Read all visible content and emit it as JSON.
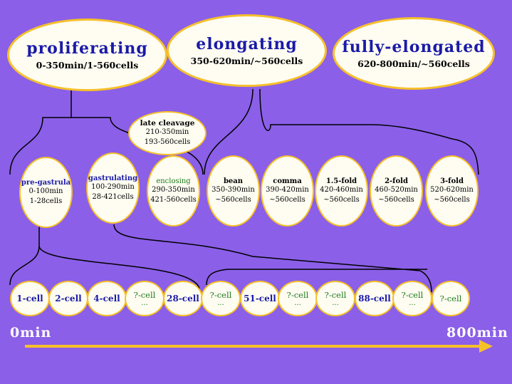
{
  "stages": [
    {
      "title": "proliferating",
      "sub": "0-350min/1-560cells"
    },
    {
      "title": "elongating",
      "sub": "350-620min/~560cells"
    },
    {
      "title": "fully-elongated",
      "sub": "620-800min/~560cells"
    }
  ],
  "late_cleavage": {
    "title": "late cleavage",
    "time": "210-350min",
    "cells": "193-560cells"
  },
  "phases": [
    {
      "title": "pre-gastrula",
      "time": "0-100min",
      "cells": "1-28cells",
      "color": "blue"
    },
    {
      "title": "gastrulating",
      "time": "100-290min",
      "cells": "28-421cells",
      "color": "blue"
    },
    {
      "title": "enclosing",
      "time": "290-350min",
      "cells": "421-560cells",
      "color": "green"
    },
    {
      "title": "bean",
      "time": "350-390min",
      "cells": "~560cells",
      "color": "black"
    },
    {
      "title": "comma",
      "time": "390-420min",
      "cells": "~560cells",
      "color": "black"
    },
    {
      "title": "1.5-fold",
      "time": "420-460min",
      "cells": "~560cells",
      "color": "black"
    },
    {
      "title": "2-fold",
      "time": "460-520min",
      "cells": "~560cells",
      "color": "black"
    },
    {
      "title": "3-fold",
      "time": "520-620min",
      "cells": "~560cells",
      "color": "black"
    }
  ],
  "cells": [
    {
      "label": "1-cell",
      "q": false
    },
    {
      "label": "2-cell",
      "q": false
    },
    {
      "label": "4-cell",
      "q": false
    },
    {
      "label": "?-cell",
      "q": true,
      "dots": "..."
    },
    {
      "label": "28-cell",
      "q": false
    },
    {
      "label": "?-cell",
      "q": true,
      "dots": "..."
    },
    {
      "label": "51-cell",
      "q": false
    },
    {
      "label": "?-cell",
      "q": true,
      "dots": "..."
    },
    {
      "label": "?-cell",
      "q": true,
      "dots": "..."
    },
    {
      "label": "88-cell",
      "q": false
    },
    {
      "label": "?-cell",
      "q": true,
      "dots": "..."
    },
    {
      "label": "?-cell",
      "q": true
    }
  ],
  "axis": {
    "start": "0min",
    "end": "800min"
  },
  "colors": {
    "background": "#8b5fe8",
    "oval_border": "#f6c02a",
    "oval_fill": "#fffdf2",
    "arrow": "#f6c02a"
  }
}
